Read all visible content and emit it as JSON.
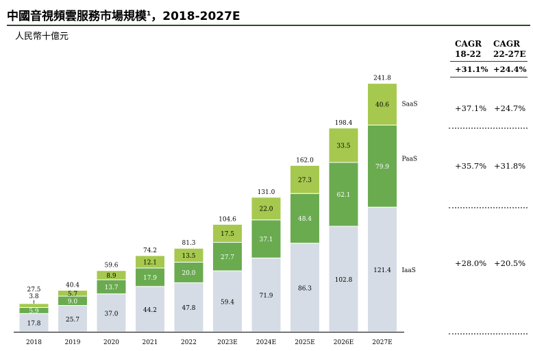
{
  "title": "中國音視頻雲服務市場規模",
  "title_sup": "1",
  "title_suffix": "，2018-2027E",
  "unit": "人民幣十億元",
  "cagr": {
    "header_1": [
      "CAGR",
      "18-22"
    ],
    "header_2": [
      "CAGR",
      "22-27E"
    ],
    "total": [
      "+31.1%",
      "+24.4%"
    ],
    "saas": [
      "+37.1%",
      "+24.7%"
    ],
    "paas": [
      "+35.7%",
      "+31.8%"
    ],
    "iaas": [
      "+28.0%",
      "+20.5%"
    ]
  },
  "colors": {
    "iaas": "#d6dce5",
    "paas": "#6aab50",
    "saas": "#a6c84f"
  },
  "chart_data": {
    "type": "bar",
    "stacked": true,
    "title": "中國音視頻雲服務市場規模，2018-2027E",
    "ylabel": "人民幣十億元",
    "categories": [
      "2018",
      "2019",
      "2020",
      "2021",
      "2022",
      "2023E",
      "2024E",
      "2025E",
      "2026E",
      "2027E"
    ],
    "series": [
      {
        "name": "IaaS",
        "values": [
          17.8,
          25.7,
          37.0,
          44.2,
          47.8,
          59.4,
          71.9,
          86.3,
          102.8,
          121.4
        ]
      },
      {
        "name": "PaaS",
        "values": [
          5.9,
          9.0,
          13.7,
          17.9,
          20.0,
          27.7,
          37.1,
          48.4,
          62.1,
          79.9
        ]
      },
      {
        "name": "SaaS",
        "values": [
          3.8,
          5.7,
          8.9,
          12.1,
          13.5,
          17.5,
          22.0,
          27.3,
          33.5,
          40.6
        ]
      }
    ],
    "totals": [
      27.5,
      40.4,
      59.6,
      74.2,
      81.3,
      104.6,
      131.0,
      162.0,
      198.4,
      241.8
    ],
    "series_labels": [
      "IaaS",
      "PaaS",
      "SaaS"
    ],
    "series_label_text": [
      "IaaS",
      "PaaS",
      "SaaS"
    ],
    "ylim": [
      0,
      260
    ]
  }
}
